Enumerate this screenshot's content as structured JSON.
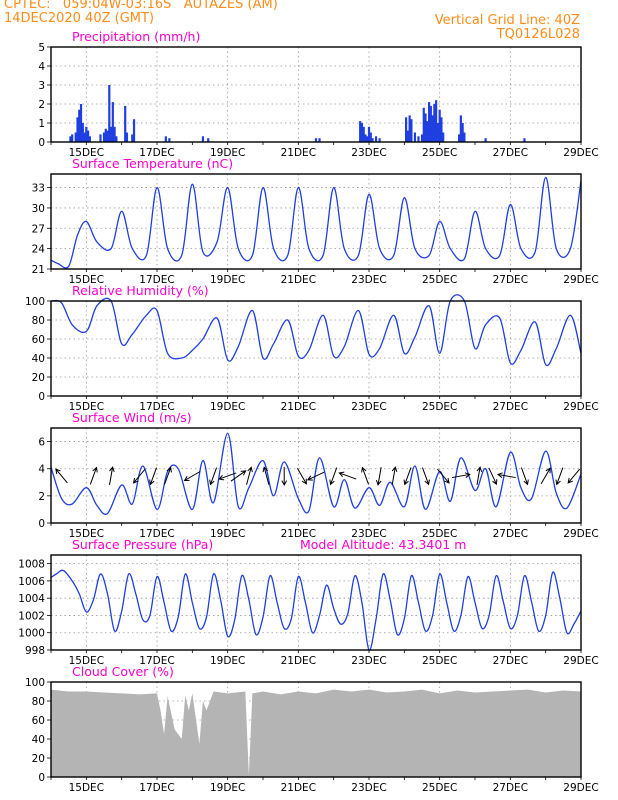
{
  "header": {
    "line1": "CPTEC:   059:04W-03:16S   AUTAZES (AM)",
    "line2": "14DEC2020 40Z (GMT)",
    "grid_note": "Vertical Grid Line: 40Z",
    "code": "TQ0126L028"
  },
  "colors": {
    "header_text": "#ff8c1a",
    "panel_title": "#ff00cc",
    "series_line": "#1f3fe0",
    "precip_bar": "#1f3fe0",
    "cloud_fill": "#b4b4b4",
    "grid": "#9a9a9a"
  },
  "chart_data": [
    {
      "type": "bar",
      "title": "Precipitation (mm/h)",
      "ylim": [
        0,
        5
      ],
      "yticks": [
        "0",
        "1",
        "2",
        "3",
        "4",
        "5"
      ],
      "xtick_labels": [
        "15DEC",
        "17DEC",
        "19DEC",
        "21DEC",
        "23DEC",
        "25DEC",
        "27DEC",
        "29DEC"
      ],
      "x_unit": "days from 14DEC 00Z",
      "x": [
        0.55,
        0.6,
        0.7,
        0.75,
        0.8,
        0.85,
        0.9,
        0.95,
        1.0,
        1.05,
        1.1,
        1.4,
        1.5,
        1.55,
        1.6,
        1.65,
        1.7,
        1.75,
        1.8,
        1.85,
        2.1,
        2.15,
        2.3,
        2.35,
        3.25,
        3.35,
        4.3,
        4.45,
        7.5,
        7.6,
        8.75,
        8.8,
        8.85,
        8.9,
        8.95,
        9.0,
        9.05,
        9.1,
        9.2,
        9.3,
        10.05,
        10.1,
        10.15,
        10.2,
        10.3,
        10.4,
        10.5,
        10.55,
        10.6,
        10.65,
        10.7,
        10.75,
        10.8,
        10.85,
        10.9,
        10.95,
        11.0,
        11.05,
        11.1,
        11.55,
        11.6,
        11.65,
        11.7,
        12.3,
        13.4
      ],
      "values": [
        0.3,
        0.4,
        0.5,
        1.3,
        1.7,
        2.0,
        1.0,
        0.5,
        0.8,
        0.6,
        0.3,
        0.4,
        0.5,
        0.7,
        0.6,
        3.0,
        0.8,
        2.1,
        0.8,
        0.3,
        1.9,
        0.5,
        0.4,
        1.2,
        0.3,
        0.2,
        0.3,
        0.2,
        0.2,
        0.2,
        1.1,
        1.0,
        0.8,
        0.4,
        0.3,
        0.8,
        0.5,
        0.2,
        0.3,
        0.2,
        1.3,
        0.6,
        1.4,
        1.2,
        0.5,
        0.3,
        0.4,
        1.8,
        1.5,
        1.1,
        2.1,
        1.9,
        1.4,
        2.0,
        2.2,
        1.0,
        1.7,
        1.3,
        0.5,
        0.4,
        1.4,
        1.0,
        0.5,
        0.2,
        0.2
      ]
    },
    {
      "type": "line",
      "title": "Surface Temperature (nC)",
      "ylim": [
        21,
        35
      ],
      "yticks": [
        "21",
        "24",
        "27",
        "30",
        "33"
      ],
      "xtick_labels": [
        "15DEC",
        "17DEC",
        "19DEC",
        "21DEC",
        "23DEC",
        "25DEC",
        "27DEC",
        "29DEC"
      ],
      "x_unit": "days from 14DEC 00Z",
      "x": [
        0,
        0.2,
        0.5,
        0.75,
        1.0,
        1.3,
        1.7,
        2.0,
        2.3,
        2.7,
        3.0,
        3.3,
        3.7,
        4.0,
        4.3,
        4.7,
        5.0,
        5.3,
        5.7,
        6.0,
        6.3,
        6.7,
        7.0,
        7.3,
        7.7,
        8.0,
        8.3,
        8.7,
        9.0,
        9.3,
        9.7,
        10.0,
        10.3,
        10.7,
        11.0,
        11.3,
        11.7,
        12.0,
        12.3,
        12.7,
        13.0,
        13.3,
        13.7,
        14.0,
        14.3,
        14.7,
        15.0
      ],
      "values": [
        22.3,
        21.8,
        21.4,
        26,
        28,
        25,
        24,
        29.5,
        24,
        23,
        33,
        24,
        23,
        33.5,
        23.5,
        25,
        33,
        24,
        23,
        33,
        24,
        23,
        33,
        24,
        23,
        33,
        24,
        23,
        32,
        24,
        23,
        31.5,
        24,
        23,
        28,
        24,
        22.5,
        29.5,
        24,
        23,
        30.5,
        24,
        23.5,
        34.5,
        24,
        24,
        34
      ]
    },
    {
      "type": "line",
      "title": "Relative Humidity (%)",
      "ylim": [
        0,
        100
      ],
      "yticks": [
        "0",
        "20",
        "40",
        "60",
        "80",
        "100"
      ],
      "xtick_labels": [
        "15DEC",
        "17DEC",
        "19DEC",
        "21DEC",
        "23DEC",
        "25DEC",
        "27DEC",
        "29DEC"
      ],
      "x_unit": "days from 14DEC 00Z",
      "x": [
        0,
        0.3,
        0.6,
        1.0,
        1.3,
        1.7,
        2.0,
        2.3,
        2.7,
        3.0,
        3.3,
        3.7,
        4.0,
        4.3,
        4.7,
        5.0,
        5.3,
        5.7,
        6.0,
        6.3,
        6.7,
        7.0,
        7.3,
        7.7,
        8.0,
        8.3,
        8.7,
        9.0,
        9.3,
        9.7,
        10.0,
        10.3,
        10.7,
        11.0,
        11.3,
        11.7,
        12.0,
        12.3,
        12.7,
        13.0,
        13.3,
        13.7,
        14.0,
        14.3,
        14.7,
        15.0
      ],
      "values": [
        100,
        98,
        75,
        68,
        95,
        100,
        55,
        65,
        85,
        90,
        45,
        40,
        48,
        60,
        82,
        38,
        52,
        90,
        40,
        55,
        80,
        42,
        48,
        85,
        42,
        52,
        90,
        44,
        50,
        85,
        45,
        62,
        95,
        45,
        100,
        100,
        50,
        75,
        82,
        35,
        48,
        78,
        33,
        50,
        85,
        45
      ]
    },
    {
      "type": "line",
      "title": "Surface Wind (m/s)",
      "ylim": [
        0,
        7
      ],
      "yticks": [
        "0",
        "2",
        "4",
        "6"
      ],
      "xtick_labels": [
        "15DEC",
        "17DEC",
        "19DEC",
        "21DEC",
        "23DEC",
        "25DEC",
        "27DEC",
        "29DEC"
      ],
      "x_unit": "days from 14DEC 00Z",
      "x": [
        0,
        0.3,
        0.6,
        1.0,
        1.3,
        1.6,
        2.0,
        2.3,
        2.6,
        3.0,
        3.3,
        3.6,
        4.0,
        4.3,
        4.6,
        5.0,
        5.3,
        5.6,
        6.0,
        6.3,
        6.6,
        7.0,
        7.3,
        7.6,
        8.0,
        8.3,
        8.6,
        9.0,
        9.3,
        9.6,
        10.0,
        10.3,
        10.6,
        11.0,
        11.3,
        11.6,
        12.0,
        12.3,
        12.6,
        13.0,
        13.3,
        13.6,
        14.0,
        14.3,
        14.6,
        15.0
      ],
      "values": [
        4.1,
        1.8,
        1.4,
        2.6,
        1.3,
        0.7,
        2.8,
        1.4,
        4.2,
        1.0,
        3.8,
        4.0,
        1.0,
        4.6,
        1.5,
        6.6,
        1.2,
        2.6,
        4.6,
        2.0,
        4.5,
        1.8,
        0.9,
        4.8,
        1.2,
        3.2,
        1.1,
        2.6,
        1.3,
        3.0,
        1.2,
        4.2,
        1.0,
        3.8,
        1.6,
        4.8,
        2.4,
        4.0,
        1.2,
        5.2,
        2.6,
        1.8,
        5.3,
        2.2,
        1.1,
        3.6
      ],
      "arrows": {
        "x": [
          0.3,
          1.2,
          1.7,
          2.5,
          2.9,
          3.3,
          4.0,
          4.6,
          5.0,
          5.3,
          5.6,
          6.1,
          6.6,
          7.1,
          7.5,
          8.0,
          8.4,
          8.9,
          9.3,
          9.7,
          10.1,
          10.6,
          11.1,
          11.6,
          12.1,
          12.5,
          12.9,
          13.4,
          14.0,
          14.4,
          14.8
        ],
        "dir_deg": [
          130,
          70,
          80,
          230,
          250,
          70,
          210,
          250,
          200,
          35,
          75,
          105,
          270,
          300,
          205,
          250,
          160,
          110,
          260,
          80,
          250,
          290,
          310,
          10,
          80,
          295,
          170,
          290,
          60,
          250,
          230
        ]
      }
    },
    {
      "type": "line",
      "title": "Surface Pressure (hPa)",
      "annotation": "Model Altitude: 43.3401 m",
      "ylim": [
        998,
        1009
      ],
      "yticks": [
        "998",
        "1000",
        "1002",
        "1004",
        "1006",
        "1008"
      ],
      "xtick_labels": [
        "15DEC",
        "17DEC",
        "19DEC",
        "21DEC",
        "23DEC",
        "25DEC",
        "27DEC",
        "29DEC"
      ],
      "x_unit": "days from 14DEC 00Z",
      "x": [
        0,
        0.15,
        0.35,
        0.6,
        0.8,
        1.0,
        1.2,
        1.4,
        1.6,
        1.8,
        2.0,
        2.2,
        2.4,
        2.6,
        2.8,
        3.0,
        3.2,
        3.4,
        3.6,
        3.8,
        4.0,
        4.2,
        4.4,
        4.6,
        4.8,
        5.0,
        5.2,
        5.4,
        5.6,
        5.8,
        6.0,
        6.2,
        6.4,
        6.6,
        6.8,
        7.0,
        7.2,
        7.4,
        7.6,
        7.8,
        8.0,
        8.2,
        8.4,
        8.6,
        8.8,
        9.0,
        9.2,
        9.4,
        9.6,
        9.8,
        10.0,
        10.2,
        10.4,
        10.6,
        10.8,
        11.0,
        11.2,
        11.4,
        11.6,
        11.8,
        12.0,
        12.2,
        12.4,
        12.6,
        12.8,
        13.0,
        13.2,
        13.4,
        13.6,
        13.8,
        14.0,
        14.2,
        14.4,
        14.6,
        14.8,
        15.0
      ],
      "values": [
        1006.4,
        1006.8,
        1007.2,
        1006,
        1004.5,
        1002.4,
        1003.8,
        1006.8,
        1004.5,
        1000.2,
        1002.5,
        1006.8,
        1004.5,
        1001.5,
        1002,
        1006.5,
        1003.5,
        1000.2,
        1001.8,
        1006.8,
        1003.5,
        1000.5,
        1001.8,
        1006.8,
        1003.8,
        999.6,
        1001.5,
        1006.6,
        1003.8,
        999.8,
        1001.8,
        1006.6,
        1003.5,
        1000.5,
        1001.6,
        1006.5,
        1003.5,
        1000,
        1002,
        1005.5,
        1002.8,
        1001,
        1002.2,
        1006.6,
        1003.5,
        998,
        1001.6,
        1006.8,
        1003.8,
        999.8,
        1001.6,
        1006.6,
        1003.5,
        1000.2,
        1002,
        1006.8,
        1003.5,
        1000.2,
        1002,
        1006.5,
        1003.5,
        1000.5,
        1002,
        1006.6,
        1003.6,
        1000.5,
        1002,
        1006.6,
        1003.6,
        1000.2,
        1002,
        1007,
        1004,
        1000,
        1001,
        1002.5
      ]
    },
    {
      "type": "area",
      "title": "Cloud Cover (%)",
      "ylim": [
        0,
        100
      ],
      "yticks": [
        "0",
        "20",
        "40",
        "60",
        "80",
        "100"
      ],
      "xtick_labels": [
        "15DEC",
        "17DEC",
        "19DEC",
        "21DEC",
        "23DEC",
        "25DEC",
        "27DEC",
        "29DEC"
      ],
      "x_unit": "days from 14DEC 00Z",
      "x": [
        0,
        0.5,
        1.0,
        1.5,
        2.0,
        2.5,
        3.0,
        3.1,
        3.2,
        3.3,
        3.5,
        3.7,
        3.8,
        3.9,
        4.0,
        4.2,
        4.3,
        4.4,
        4.6,
        5.0,
        5.5,
        5.6,
        5.7,
        6.0,
        6.5,
        7.0,
        7.5,
        8.0,
        8.5,
        9.0,
        9.5,
        10.0,
        10.5,
        11.0,
        11.5,
        12.0,
        12.5,
        13.0,
        13.5,
        14.0,
        14.5,
        15.0
      ],
      "values": [
        92,
        90,
        90,
        89,
        88,
        87,
        88,
        70,
        45,
        85,
        50,
        40,
        86,
        70,
        88,
        35,
        80,
        70,
        90,
        88,
        90,
        2,
        88,
        90,
        87,
        90,
        88,
        92,
        90,
        92,
        89,
        90,
        92,
        88,
        91,
        89,
        90,
        91,
        92,
        89,
        91,
        90
      ]
    }
  ]
}
